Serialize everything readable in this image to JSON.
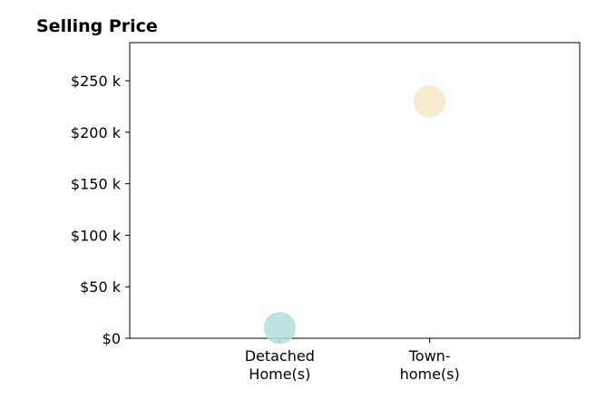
{
  "chart_data": {
    "type": "scatter",
    "title": "Selling Price",
    "xlabel": "",
    "ylabel": "",
    "categories": [
      [
        "Detached",
        "Home(s)"
      ],
      [
        "Town-",
        "home(s)"
      ]
    ],
    "points": [
      {
        "category_index": 0,
        "value": 10000,
        "color": "#b2dfdb"
      },
      {
        "category_index": 1,
        "value": 230000,
        "color": "#f8e7c6"
      }
    ],
    "yticks": [
      0,
      50000,
      100000,
      150000,
      200000,
      250000
    ],
    "ytick_labels": [
      "$0",
      "$50 k",
      "$100 k",
      "$150 k",
      "$200 k",
      "$250 k"
    ],
    "ylim": [
      0,
      287000
    ],
    "x_positions": [
      1,
      2
    ],
    "xlim": [
      0,
      3
    ],
    "grid": false,
    "legend": "none"
  }
}
